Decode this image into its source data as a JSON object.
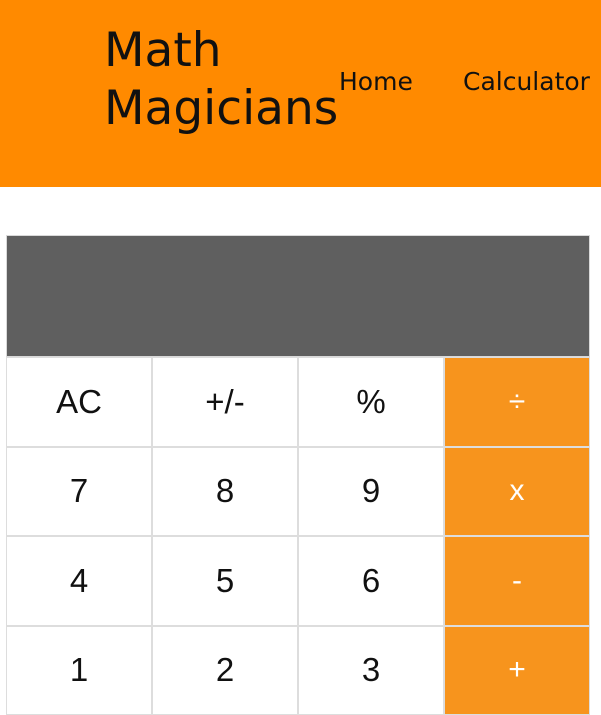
{
  "header": {
    "brand": "Math Magicians",
    "nav": [
      {
        "label": "Home"
      },
      {
        "label": "Calculator"
      }
    ]
  },
  "calculator": {
    "display_value": "",
    "rows": [
      [
        {
          "label": "AC",
          "type": "function"
        },
        {
          "label": "+/-",
          "type": "function"
        },
        {
          "label": "%",
          "type": "function"
        },
        {
          "label": "÷",
          "type": "operator"
        }
      ],
      [
        {
          "label": "7",
          "type": "digit"
        },
        {
          "label": "8",
          "type": "digit"
        },
        {
          "label": "9",
          "type": "digit"
        },
        {
          "label": "x",
          "type": "operator"
        }
      ],
      [
        {
          "label": "4",
          "type": "digit"
        },
        {
          "label": "5",
          "type": "digit"
        },
        {
          "label": "6",
          "type": "digit"
        },
        {
          "label": "-",
          "type": "operator"
        }
      ],
      [
        {
          "label": "1",
          "type": "digit"
        },
        {
          "label": "2",
          "type": "digit"
        },
        {
          "label": "3",
          "type": "digit"
        },
        {
          "label": "+",
          "type": "operator"
        }
      ]
    ]
  },
  "colors": {
    "header_bg": "#ff8a00",
    "display_bg": "#5f5f5f",
    "operator_bg": "#f7941d",
    "key_bg": "#ffffff"
  }
}
